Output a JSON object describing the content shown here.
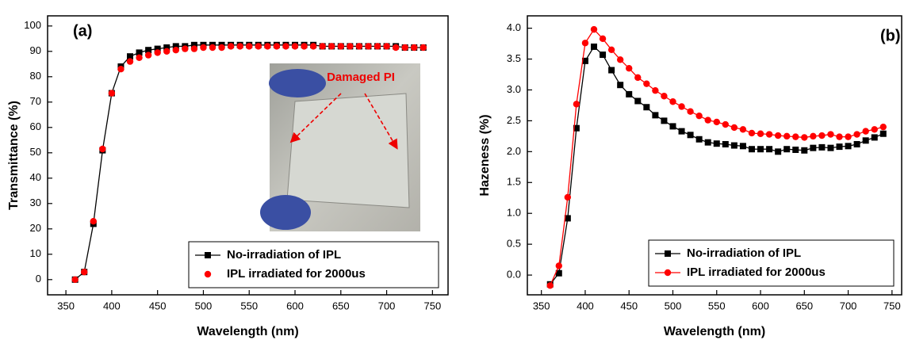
{
  "chart_data": [
    {
      "type": "line",
      "label": "(a)",
      "xlabel": "Wavelength (nm)",
      "ylabel": "Transmittance (%)",
      "annotation": "Damaged PI",
      "xlim": [
        330,
        767
      ],
      "ylim": [
        -6,
        104
      ],
      "xticks": [
        350,
        400,
        450,
        500,
        550,
        600,
        650,
        700,
        750
      ],
      "yticks": [
        0,
        10,
        20,
        30,
        40,
        50,
        60,
        70,
        80,
        90,
        100
      ],
      "x": [
        360,
        370,
        380,
        390,
        400,
        410,
        420,
        430,
        440,
        450,
        460,
        470,
        480,
        490,
        500,
        510,
        520,
        530,
        540,
        550,
        560,
        570,
        580,
        590,
        600,
        610,
        620,
        630,
        640,
        650,
        660,
        670,
        680,
        690,
        700,
        710,
        720,
        730,
        740
      ],
      "series": [
        {
          "name": "No-irradiation of IPL",
          "color": "#000000",
          "line": true,
          "marker": "square",
          "values": [
            0,
            3,
            22,
            51,
            73.5,
            84,
            88,
            89.5,
            90.5,
            91,
            91.5,
            92,
            92,
            92.5,
            92.5,
            92.5,
            92.5,
            92.5,
            92.5,
            92.5,
            92.5,
            92.5,
            92.5,
            92.5,
            92.5,
            92.5,
            92.5,
            92,
            92,
            92,
            92,
            92,
            92,
            92,
            92,
            92,
            91.5,
            91.5,
            91.5
          ]
        },
        {
          "name": "IPL irradiated for 2000us",
          "color": "#ff0000",
          "line": false,
          "marker": "circle",
          "values": [
            0,
            3,
            23,
            51.5,
            73.5,
            83,
            86,
            87.5,
            88.5,
            89.5,
            90,
            90.5,
            91,
            91,
            91.5,
            91.5,
            91.5,
            92,
            92,
            92,
            92,
            92,
            92,
            92,
            92,
            92,
            92,
            92,
            92,
            92,
            92,
            92,
            92,
            92,
            92,
            91.5,
            91.5,
            91.5,
            91.5
          ]
        }
      ]
    },
    {
      "type": "line",
      "label": "(b)",
      "xlabel": "Wavelength (nm)",
      "ylabel": "Hazeness (%)",
      "xlim": [
        334,
        761
      ],
      "ylim": [
        -0.32,
        4.2
      ],
      "xticks": [
        350,
        400,
        450,
        500,
        550,
        600,
        650,
        700,
        750
      ],
      "yticks": [
        {
          "value": 0,
          "label": "0.0"
        },
        {
          "value": 0.5,
          "label": "0.5"
        },
        {
          "value": 1,
          "label": "1.0"
        },
        {
          "value": 1.5,
          "label": "1.5"
        },
        {
          "value": 2,
          "label": "2.0"
        },
        {
          "value": 2.5,
          "label": "2.5"
        },
        {
          "value": 3,
          "label": "3.0"
        },
        {
          "value": 3.5,
          "label": "3.5"
        },
        {
          "value": 4,
          "label": "4.0"
        }
      ],
      "x": [
        360,
        370,
        380,
        390,
        400,
        410,
        420,
        430,
        440,
        450,
        460,
        470,
        480,
        490,
        500,
        510,
        520,
        530,
        540,
        550,
        560,
        570,
        580,
        590,
        600,
        610,
        620,
        630,
        640,
        650,
        660,
        670,
        680,
        690,
        700,
        710,
        720,
        730,
        740
      ],
      "series": [
        {
          "name": "No-irradiation of IPL",
          "color": "#000000",
          "line": true,
          "marker": "square",
          "values": [
            -0.15,
            0.03,
            0.92,
            2.38,
            3.47,
            3.7,
            3.57,
            3.32,
            3.08,
            2.93,
            2.82,
            2.72,
            2.59,
            2.5,
            2.41,
            2.33,
            2.27,
            2.2,
            2.15,
            2.13,
            2.12,
            2.1,
            2.09,
            2.04,
            2.04,
            2.04,
            2.0,
            2.04,
            2.03,
            2.02,
            2.06,
            2.07,
            2.06,
            2.08,
            2.09,
            2.12,
            2.18,
            2.23,
            2.29
          ]
        },
        {
          "name": "IPL irradiated for 2000us",
          "color": "#ff0000",
          "line": true,
          "marker": "circle",
          "values": [
            -0.17,
            0.15,
            1.26,
            2.77,
            3.76,
            3.98,
            3.83,
            3.65,
            3.49,
            3.35,
            3.2,
            3.1,
            2.99,
            2.9,
            2.81,
            2.73,
            2.65,
            2.58,
            2.51,
            2.48,
            2.44,
            2.39,
            2.36,
            2.3,
            2.29,
            2.28,
            2.26,
            2.25,
            2.24,
            2.23,
            2.25,
            2.26,
            2.28,
            2.24,
            2.24,
            2.28,
            2.33,
            2.36,
            2.4
          ]
        }
      ]
    }
  ]
}
